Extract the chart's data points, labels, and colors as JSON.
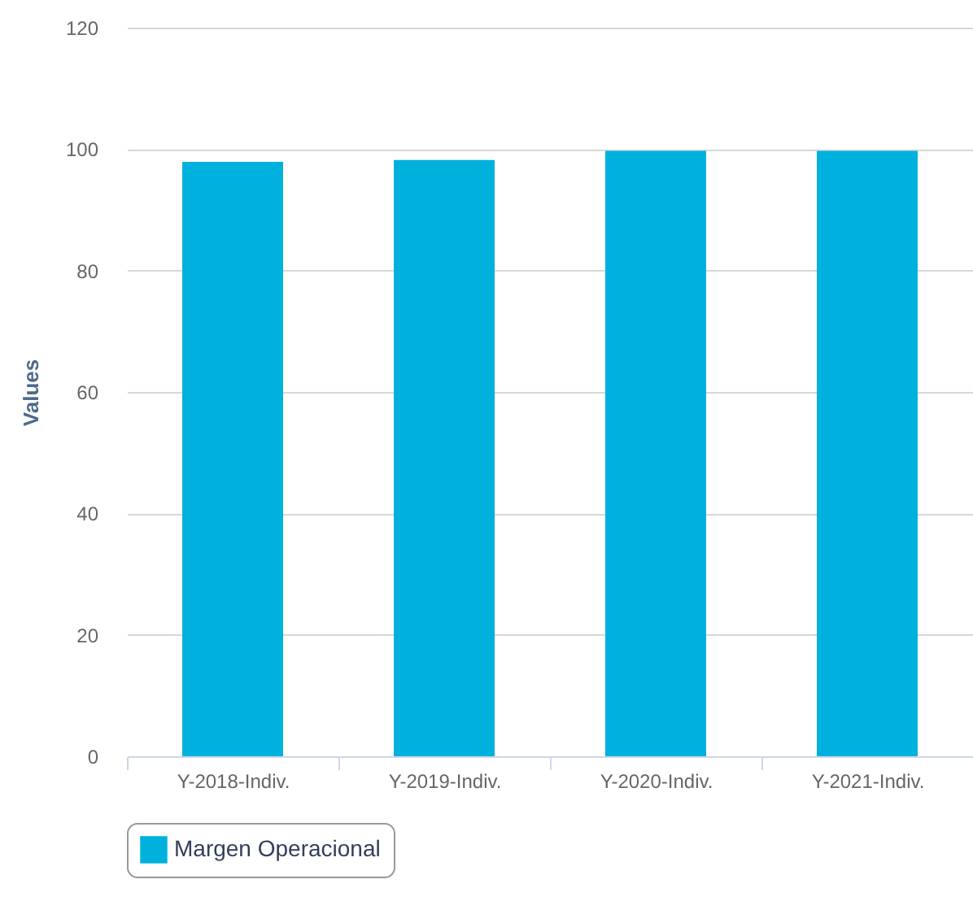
{
  "chart_data": {
    "type": "bar",
    "ylabel": "Values",
    "categories": [
      "Y-2018-Indiv.",
      "Y-2019-Indiv.",
      "Y-2020-Indiv.",
      "Y-2021-Indiv."
    ],
    "series": [
      {
        "name": "Margen Operacional",
        "color": "#00b1de",
        "values": [
          97.9,
          98.2,
          99.7,
          99.7
        ]
      }
    ],
    "ylim": [
      0,
      120
    ],
    "yticks": [
      0,
      20,
      40,
      60,
      80,
      100,
      120
    ],
    "grid": "y",
    "legend": "bottom"
  }
}
